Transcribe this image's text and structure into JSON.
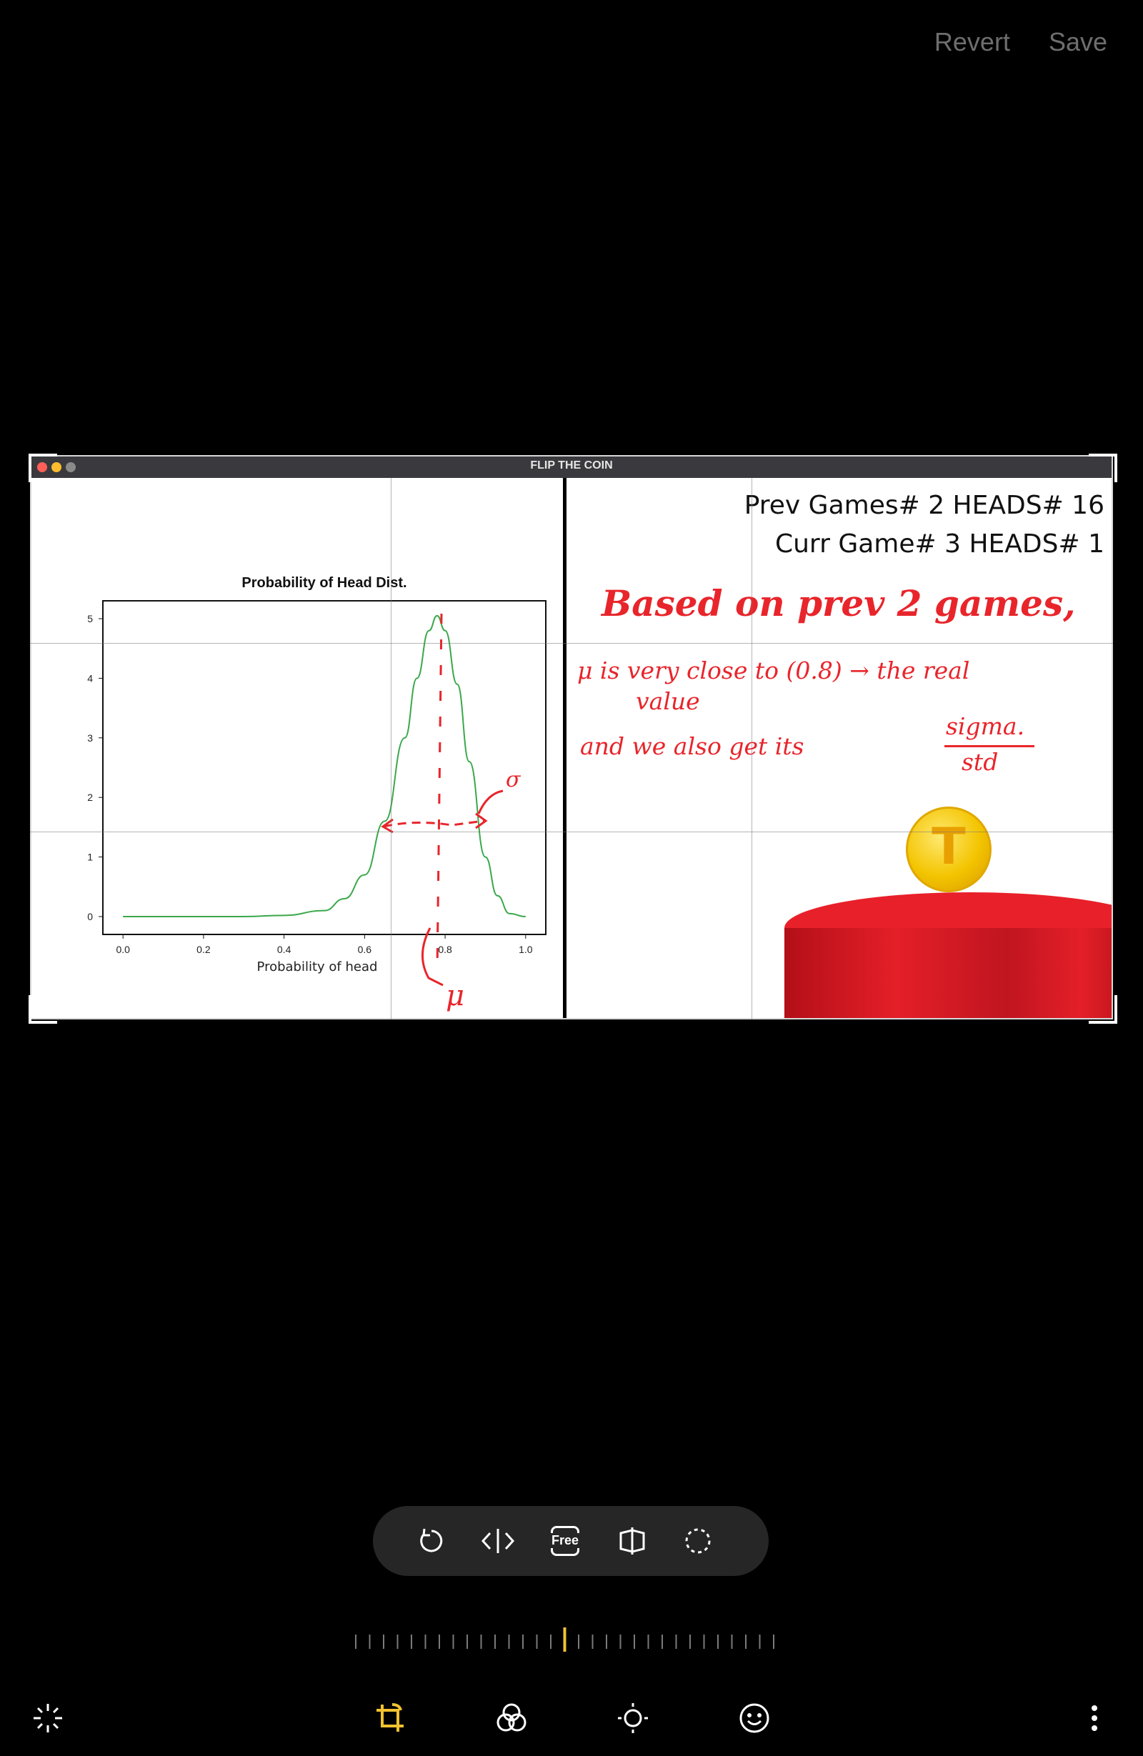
{
  "topbar": {
    "revert_label": "Revert",
    "save_label": "Save"
  },
  "window": {
    "title": "FLIP THE COIN",
    "dot_colors": [
      "#ff5f57",
      "#febc2e",
      "#8a8a8a"
    ]
  },
  "chart_data": {
    "type": "line",
    "title": "Probability of Head Dist.",
    "xlabel": "Probability of head",
    "ylabel": "",
    "xlim": [
      -0.05,
      1.05
    ],
    "ylim": [
      -0.3,
      5.3
    ],
    "xticks": [
      "0.0",
      "0.2",
      "0.4",
      "0.6",
      "0.8",
      "1.0"
    ],
    "yticks": [
      "0",
      "1",
      "2",
      "3",
      "4",
      "5"
    ],
    "series": [
      {
        "color": "#3aa84a",
        "x": [
          0.0,
          0.3,
          0.4,
          0.5,
          0.55,
          0.6,
          0.65,
          0.7,
          0.73,
          0.76,
          0.78,
          0.8,
          0.83,
          0.86,
          0.9,
          0.93,
          0.96,
          1.0
        ],
        "y": [
          0.0,
          0.0,
          0.02,
          0.1,
          0.3,
          0.7,
          1.6,
          3.0,
          4.0,
          4.8,
          5.05,
          4.8,
          3.9,
          2.6,
          1.0,
          0.35,
          0.05,
          0.0
        ]
      }
    ],
    "grid": false
  },
  "game": {
    "prev_line": "Prev Games# 2 HEADS# 16",
    "curr_line": "Curr Game# 3 HEADS# 1",
    "coin_letter": "T"
  },
  "annotations": {
    "line1": "Based on prev 2 games,",
    "line2": "μ is very close to (0.8) → the real",
    "line2b": "value",
    "line3": "and we also get its",
    "sigma": "sigma.",
    "std": "std",
    "mu_label": "μ",
    "sigma_label": "σ",
    "ink_color": "#e8252b"
  },
  "toolbar": {
    "rotate": "rotate-icon",
    "flip": "flip-icon",
    "free_label": "Free",
    "perspective": "perspective-icon",
    "lasso": "lasso-icon"
  },
  "bottom_nav": {
    "auto": "auto-enhance-icon",
    "crop": "crop-rotate-icon",
    "filters": "filters-icon",
    "brightness": "brightness-icon",
    "sticker": "sticker-icon",
    "more": "more-icon",
    "active_color": "#f2c230"
  }
}
